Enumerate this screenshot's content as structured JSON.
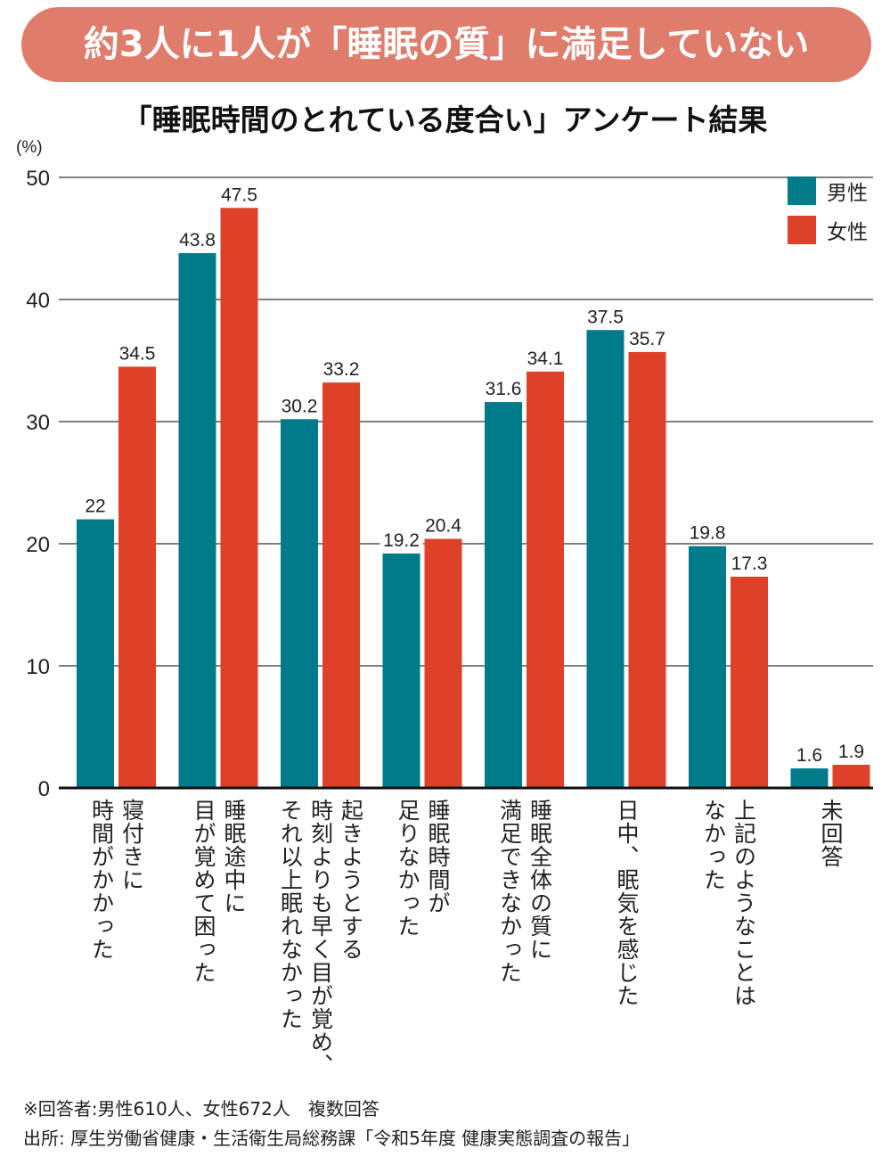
{
  "banner": {
    "title": "約3人に1人が「睡眠の質」に満足していない"
  },
  "chart_data": {
    "type": "bar",
    "title": "「睡眠時間のとれている度合い」アンケート結果",
    "ylabel": "(%)",
    "xlabel": "",
    "ylim": [
      0,
      50
    ],
    "yticks": [
      0,
      10,
      20,
      30,
      40,
      50
    ],
    "grid": true,
    "legend_position": "top-right",
    "categories": [
      "寝付きに\n時間がかかった",
      "睡眠途中に\n目が覚めて困った",
      "起きようとする\n時刻よりも早く目が覚め、\nそれ以上眠れなかった",
      "睡眠時間が\n足りなかった",
      "睡眠全体の質に\n満足できなかった",
      "日中、眠気を感じた",
      "上記のようなことは\nなかった",
      "未回答"
    ],
    "series": [
      {
        "name": "男性",
        "color": "#007b8a",
        "values": [
          22,
          43.8,
          30.2,
          19.2,
          31.6,
          37.5,
          19.8,
          1.6
        ],
        "labels": [
          "22",
          "43.8",
          "30.2",
          "19.2",
          "31.6",
          "37.5",
          "19.8",
          "1.6"
        ]
      },
      {
        "name": "女性",
        "color": "#de4128",
        "values": [
          34.5,
          47.5,
          33.2,
          20.4,
          34.1,
          35.7,
          17.3,
          1.9
        ],
        "labels": [
          "34.5",
          "47.5",
          "33.2",
          "20.4",
          "34.1",
          "35.7",
          "17.3",
          "1.9"
        ]
      }
    ]
  },
  "notes": {
    "respondents": "※回答者:男性610人、女性672人　複数回答",
    "source": "出所: 厚生労働省健康・生活衛生局総務課「令和5年度 健康実態調査の報告」"
  }
}
